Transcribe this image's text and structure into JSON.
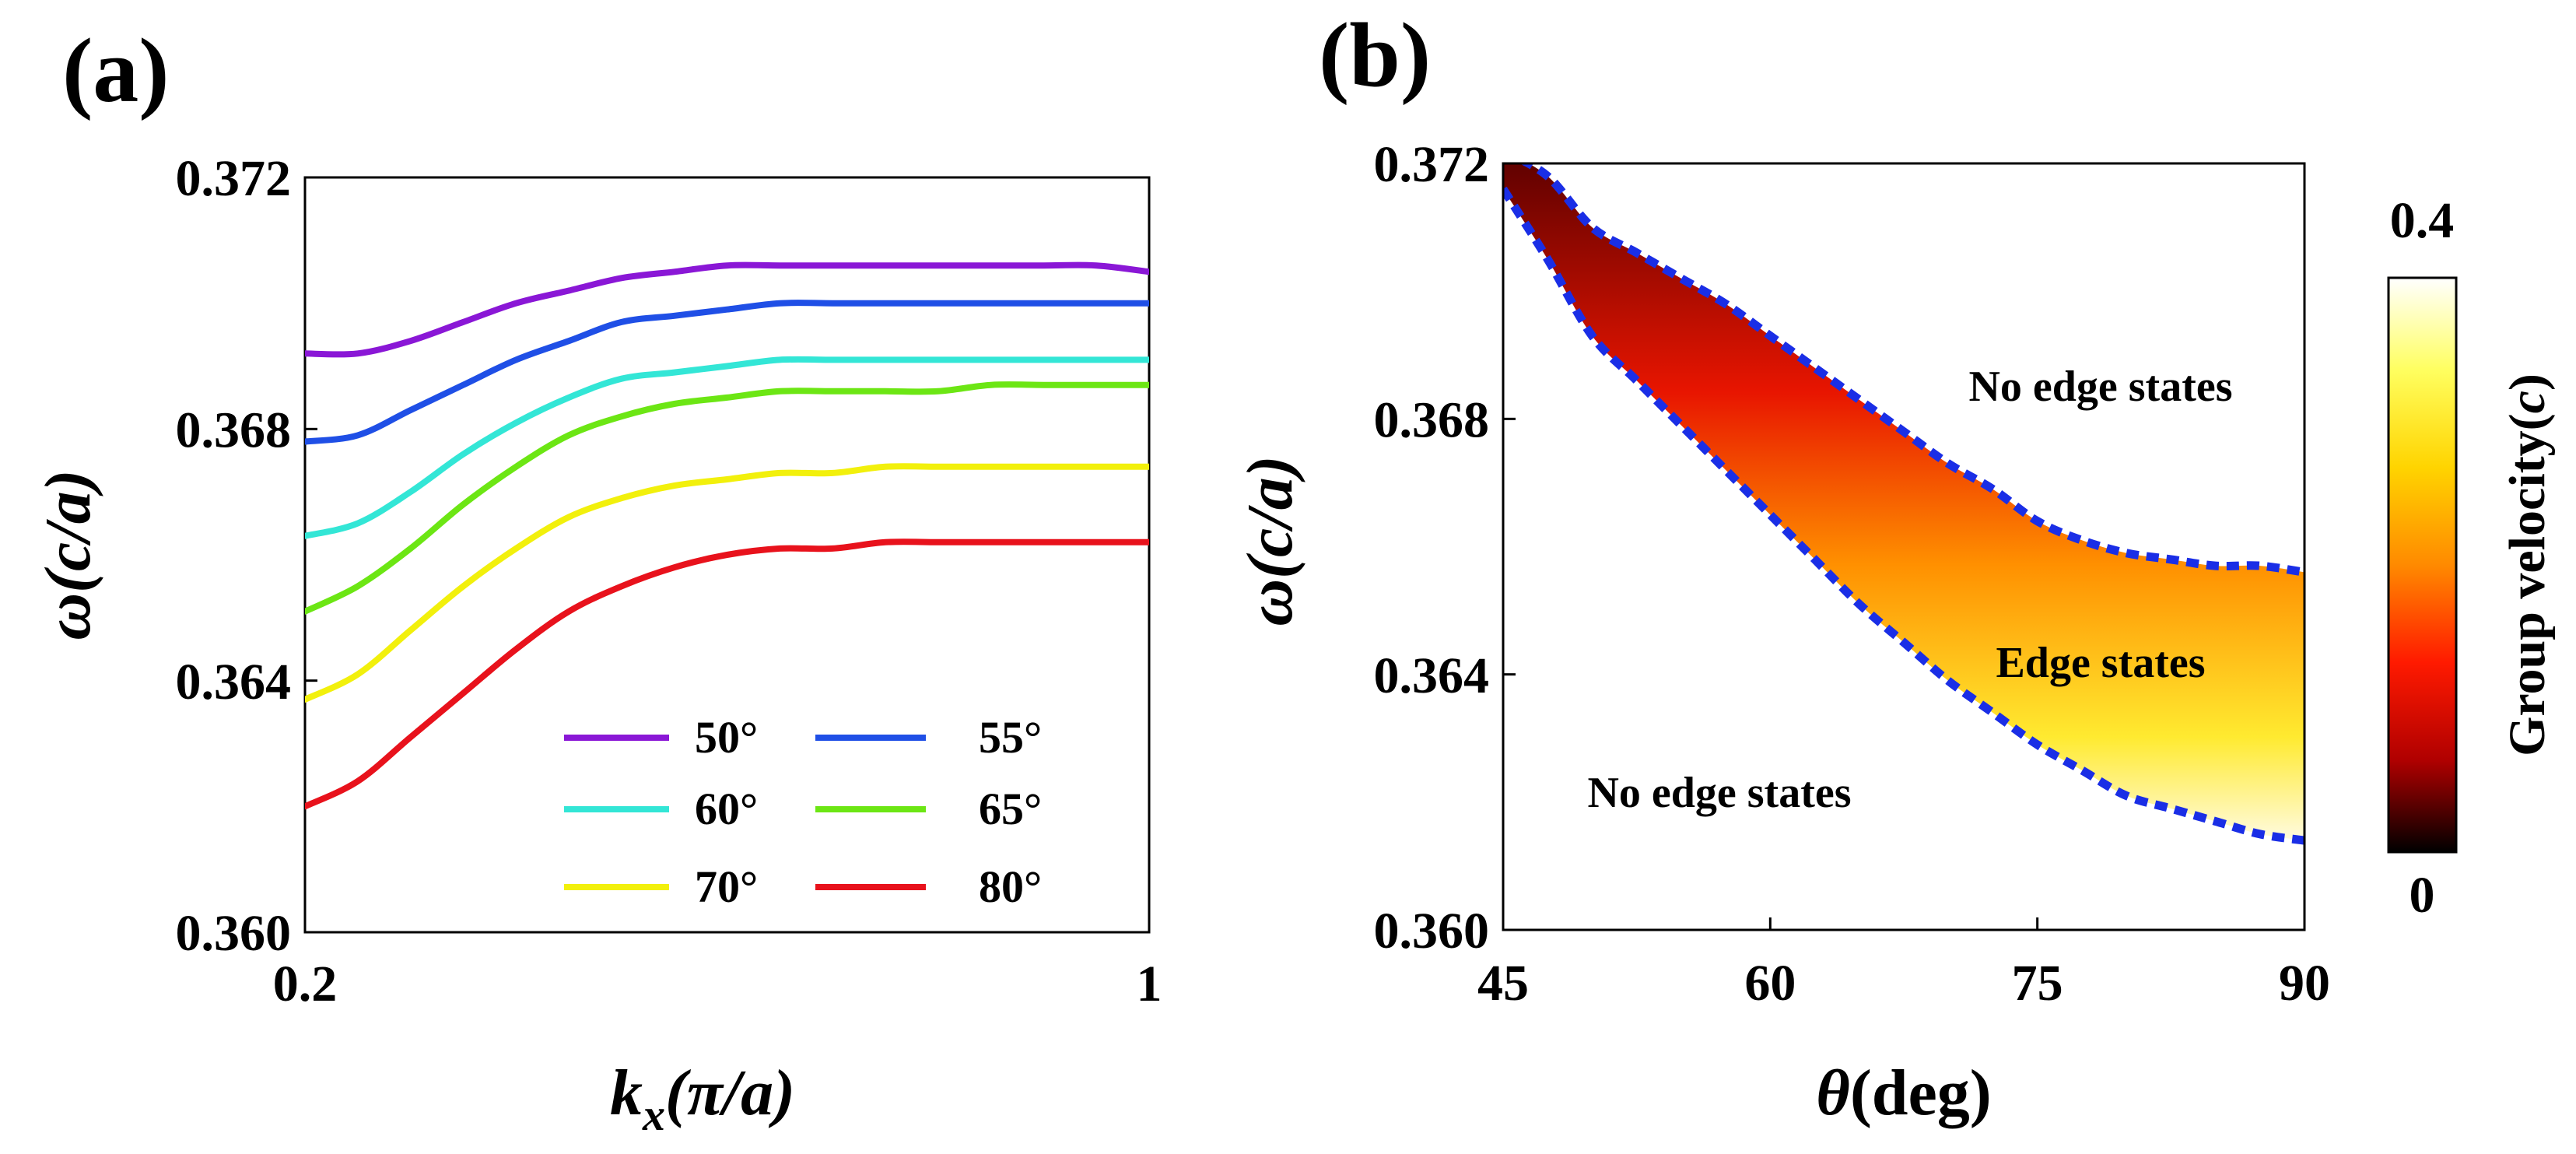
{
  "panel_a": {
    "label": "(a)",
    "chart_data": {
      "type": "line",
      "xlabel_main": "k",
      "xlabel_sub": "x",
      "xlabel_rest": "(π/a)",
      "ylabel": "ω(c/a)",
      "xlim": [
        0.2,
        1.0
      ],
      "ylim": [
        0.36,
        0.372
      ],
      "xticks": [
        "0.2",
        "1"
      ],
      "yticks": [
        "0.360",
        "0.364",
        "0.368",
        "0.372"
      ],
      "x": [
        0.2,
        0.25,
        0.3,
        0.35,
        0.4,
        0.45,
        0.5,
        0.55,
        0.6,
        0.65,
        0.7,
        0.75,
        0.8,
        0.85,
        0.9,
        0.95,
        1.0
      ],
      "series": [
        {
          "name": "50°",
          "color": "#8a17d6",
          "values": [
            0.3692,
            0.3692,
            0.3694,
            0.3697,
            0.37,
            0.3702,
            0.3704,
            0.3705,
            0.3706,
            0.3706,
            0.3706,
            0.3706,
            0.3706,
            0.3706,
            0.3706,
            0.3706,
            0.3705
          ]
        },
        {
          "name": "55°",
          "color": "#1f4fe6",
          "values": [
            0.3678,
            0.3679,
            0.3683,
            0.3687,
            0.3691,
            0.3694,
            0.3697,
            0.3698,
            0.3699,
            0.37,
            0.37,
            0.37,
            0.37,
            0.37,
            0.37,
            0.37,
            0.37
          ]
        },
        {
          "name": "60°",
          "color": "#33e6d6",
          "values": [
            0.3663,
            0.3665,
            0.367,
            0.3676,
            0.3681,
            0.3685,
            0.3688,
            0.3689,
            0.369,
            0.3691,
            0.3691,
            0.3691,
            0.3691,
            0.3691,
            0.3691,
            0.3691,
            0.3691
          ]
        },
        {
          "name": "65°",
          "color": "#6ce614",
          "values": [
            0.3651,
            0.3655,
            0.3661,
            0.3668,
            0.3674,
            0.3679,
            0.3682,
            0.3684,
            0.3685,
            0.3686,
            0.3686,
            0.3686,
            0.3686,
            0.3687,
            0.3687,
            0.3687,
            0.3687
          ]
        },
        {
          "name": "70°",
          "color": "#f2f00c",
          "values": [
            0.3637,
            0.3641,
            0.3648,
            0.3655,
            0.3661,
            0.3666,
            0.3669,
            0.3671,
            0.3672,
            0.3673,
            0.3673,
            0.3674,
            0.3674,
            0.3674,
            0.3674,
            0.3674,
            0.3674
          ]
        },
        {
          "name": "80°",
          "color": "#e8121c",
          "values": [
            0.362,
            0.3624,
            0.3631,
            0.3638,
            0.3645,
            0.3651,
            0.3655,
            0.3658,
            0.366,
            0.3661,
            0.3661,
            0.3662,
            0.3662,
            0.3662,
            0.3662,
            0.3662,
            0.3662
          ]
        }
      ]
    }
  },
  "panel_b": {
    "label": "(b)",
    "chart_data": {
      "type": "heatmap",
      "xlabel": "θ(deg)",
      "ylabel": "ω(c/a)",
      "xlim": [
        45,
        90
      ],
      "ylim": [
        0.36,
        0.372
      ],
      "xticks": [
        "45",
        "60",
        "75",
        "90"
      ],
      "yticks": [
        "0.360",
        "0.364",
        "0.368",
        "0.372"
      ],
      "upper_boundary": {
        "theta": [
          45,
          47.5,
          50,
          52.5,
          55,
          57.5,
          60,
          62.5,
          65,
          67.5,
          70,
          72.5,
          75,
          77.5,
          80,
          82.5,
          85,
          87.5,
          90
        ],
        "omega": [
          0.3722,
          0.3718,
          0.371,
          0.3706,
          0.3702,
          0.3698,
          0.3693,
          0.3688,
          0.3683,
          0.3678,
          0.3673,
          0.3669,
          0.3664,
          0.3661,
          0.3659,
          0.3658,
          0.3657,
          0.3657,
          0.3656
        ]
      },
      "lower_boundary": {
        "theta": [
          45,
          47.5,
          50,
          52.5,
          55,
          57.5,
          60,
          62.5,
          65,
          67.5,
          70,
          72.5,
          75,
          77.5,
          80,
          82.5,
          85,
          87.5,
          90
        ],
        "omega": [
          0.3716,
          0.3705,
          0.3693,
          0.3686,
          0.3679,
          0.3672,
          0.3665,
          0.3658,
          0.3651,
          0.3645,
          0.3639,
          0.3634,
          0.3629,
          0.3625,
          0.3621,
          0.3619,
          0.3617,
          0.3615,
          0.3614
        ]
      },
      "annotations": {
        "upper_region": "No edge states",
        "band_region": "Edge states",
        "lower_region": "No edge states"
      },
      "colorbar": {
        "label": "Group velocity(c)",
        "max_label": "0.4",
        "min_label": "0",
        "range": [
          0,
          0.4
        ],
        "stops": [
          "#000000",
          "#b00000",
          "#ff1a00",
          "#ff8a00",
          "#ffd400",
          "#ffff60",
          "#ffffff"
        ]
      },
      "boundary_color": "#1a2ee6"
    }
  }
}
